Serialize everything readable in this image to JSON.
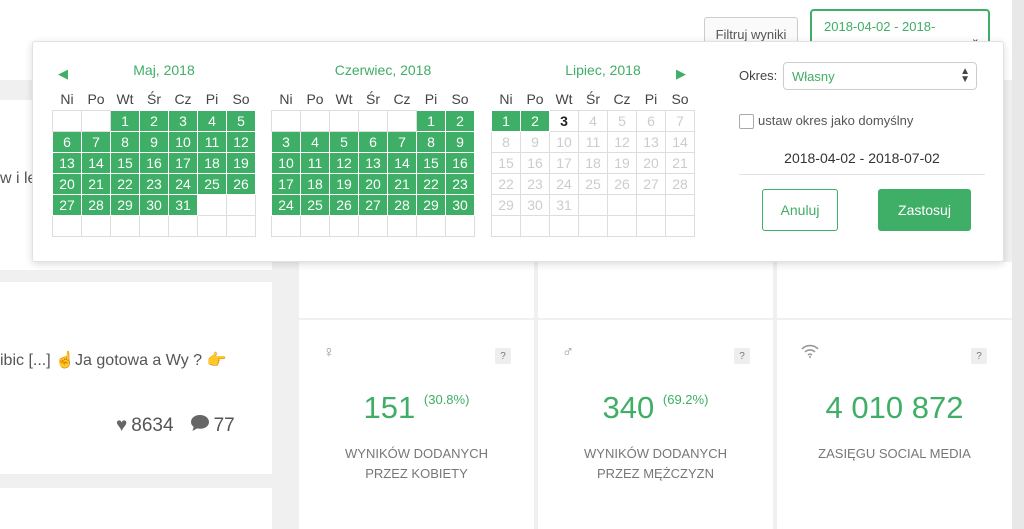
{
  "header": {
    "filter_label": "Filtruj wyniki",
    "range_label": "2018-04-02 - 2018-"
  },
  "background": {
    "snippet1": "w i le",
    "snippet2": "ibic [...] ☝️Ja gotowa a Wy ? 👉",
    "likes": "8634",
    "comments": "77"
  },
  "stats": [
    {
      "value": "151",
      "pct": "(30.8%)",
      "line1": "WYNIKÓW DODANYCH",
      "line2": "PRZEZ KOBIETY",
      "icon": "female-icon"
    },
    {
      "value": "340",
      "pct": "(69.2%)",
      "line1": "WYNIKÓW DODANYCH",
      "line2": "PRZEZ MĘŻCZYZN",
      "icon": "male-icon"
    },
    {
      "value": "4 010 872",
      "pct": "",
      "line1": "ZASIĘGU SOCIAL MEDIA",
      "line2": "",
      "icon": "wifi-icon"
    }
  ],
  "stat_help": "?",
  "picker": {
    "weekdays": [
      "Ni",
      "Po",
      "Wt",
      "Śr",
      "Cz",
      "Pi",
      "So"
    ],
    "months": [
      {
        "title": "Maj, 2018",
        "start_offset": 2,
        "days": 31,
        "selected_until": 31,
        "today": 0
      },
      {
        "title": "Czerwiec, 2018",
        "start_offset": 5,
        "days": 30,
        "selected_until": 30,
        "today": 0
      },
      {
        "title": "Lipiec, 2018",
        "start_offset": 0,
        "days": 31,
        "selected_until": 2,
        "today": 3
      }
    ],
    "okres_label": "Okres:",
    "okres_value": "Własny",
    "default_label": "ustaw okres jako domyślny",
    "range_text": "2018-04-02 - 2018-07-02",
    "cancel_label": "Anuluj",
    "apply_label": "Zastosuj"
  },
  "colors": {
    "accent": "#3fae66"
  }
}
